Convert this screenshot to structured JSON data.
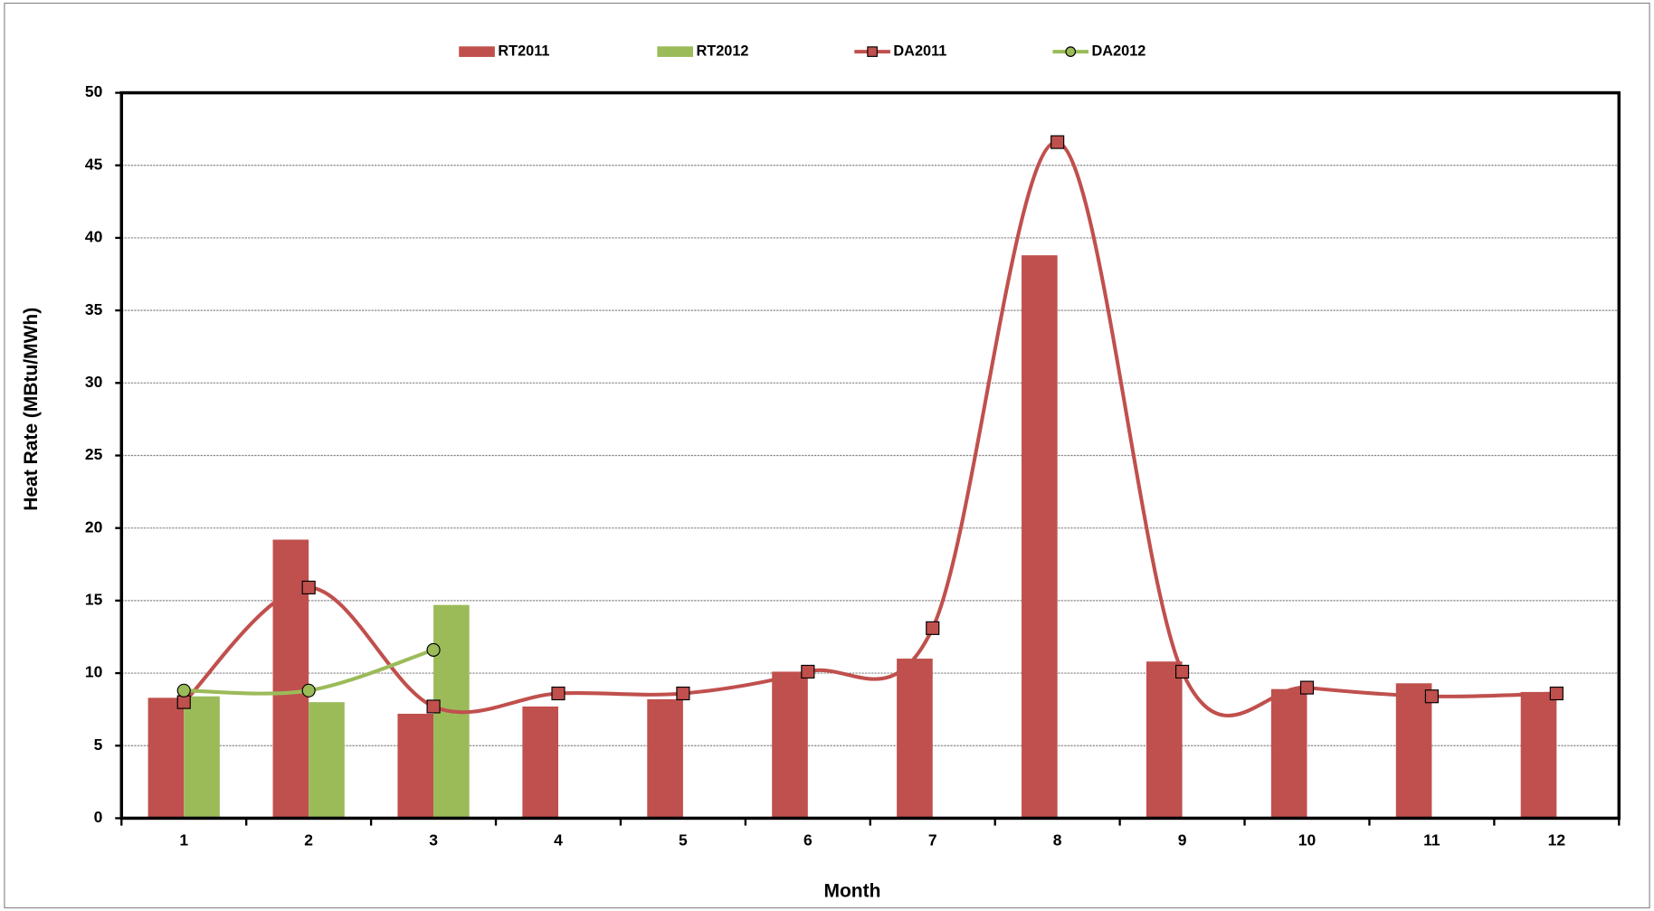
{
  "chart_data": {
    "type": "bar-line",
    "x_label": "Month",
    "y_label": "Heat Rate (MBtu/MWh)",
    "categories": [
      "1",
      "2",
      "3",
      "4",
      "5",
      "6",
      "7",
      "8",
      "9",
      "10",
      "11",
      "12"
    ],
    "series": [
      {
        "name": "RT2011",
        "kind": "bar",
        "color": "#c0504d",
        "values": [
          8.3,
          19.2,
          7.2,
          7.7,
          8.2,
          10.1,
          11.0,
          38.8,
          10.8,
          8.9,
          9.3,
          8.7
        ]
      },
      {
        "name": "RT2012",
        "kind": "bar",
        "color": "#9bbb59",
        "values": [
          8.4,
          8.0,
          14.7,
          null,
          null,
          null,
          null,
          null,
          null,
          null,
          null,
          null
        ]
      },
      {
        "name": "DA2011",
        "kind": "line",
        "marker": "square",
        "color": "#c0504d",
        "values": [
          8.0,
          15.9,
          7.7,
          8.6,
          8.6,
          10.1,
          13.1,
          46.6,
          10.1,
          9.0,
          8.4,
          8.6
        ]
      },
      {
        "name": "DA2012",
        "kind": "line",
        "marker": "circle",
        "color": "#9bbb59",
        "values": [
          8.8,
          8.8,
          11.6,
          null,
          null,
          null,
          null,
          null,
          null,
          null,
          null,
          null
        ]
      }
    ],
    "ylim": [
      0,
      50
    ],
    "yticks": [
      0,
      5,
      10,
      15,
      20,
      25,
      30,
      35,
      40,
      45,
      50
    ],
    "grid": true,
    "legend": "top"
  }
}
